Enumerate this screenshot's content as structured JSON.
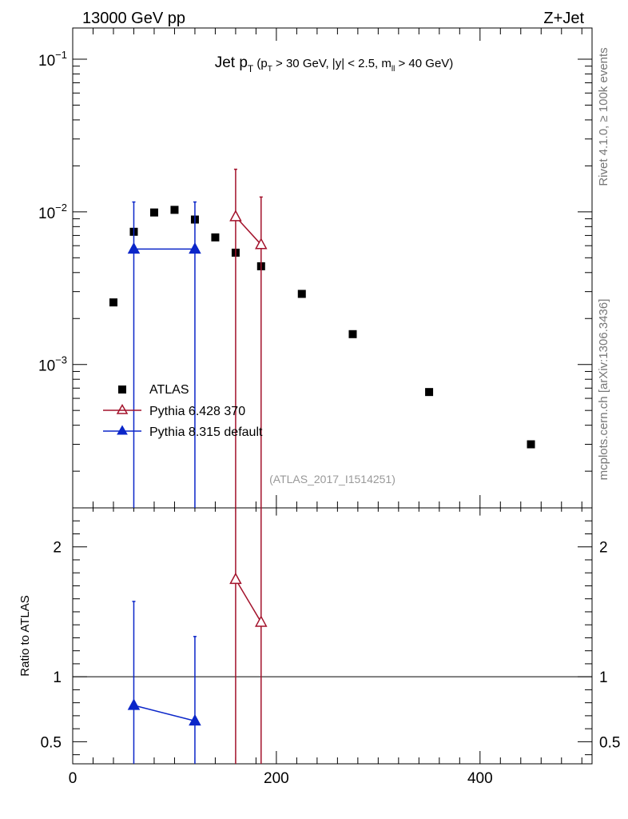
{
  "header": {
    "left": "13000 GeV pp",
    "right": "Z+Jet"
  },
  "side": {
    "rivet": "Rivet 4.1.0, ≥ 100k events",
    "mcplots": "mcplots.cern.ch [arXiv:1306.3436]"
  },
  "chart_data": {
    "type": "scatter",
    "title": {
      "main": "Jet p",
      "main_sub": "T",
      "cut_open": " (p",
      "cut_sub1": "T",
      "cut_mid": " > 30 GeV, |y| < 2.5, m",
      "cut_sub2": "ll",
      "cut_close": " > 40 GeV)"
    },
    "analysis_id": "(ATLAS_2017_I1514251)",
    "xlim": [
      0,
      510
    ],
    "x_ticks": [
      0,
      200,
      400
    ],
    "x_tick_labels": [
      "0",
      "200",
      "400"
    ],
    "main_panel": {
      "yscale": "log",
      "ylim": [
        0.000115,
        0.16
      ],
      "y_ticks": [
        0.001,
        0.01,
        0.1
      ],
      "y_tick_labels": [
        {
          "base": "10",
          "exp": "−3"
        },
        {
          "base": "10",
          "exp": "−2"
        },
        {
          "base": "10",
          "exp": "−1"
        }
      ]
    },
    "ratio_panel": {
      "ylabel": "Ratio to ATLAS",
      "ylim": [
        0.33,
        2.3
      ],
      "y_ticks": [
        0.5,
        1,
        2
      ],
      "y_tick_labels": [
        "0.5",
        "1",
        "2"
      ],
      "reference_line": 1
    },
    "series": [
      {
        "name": "ATLAS",
        "color": "#000000",
        "marker": "square",
        "x": [
          40,
          60,
          80,
          100,
          120,
          140,
          160,
          185,
          225,
          275,
          350,
          450
        ],
        "y": [
          0.00255,
          0.0074,
          0.0099,
          0.0103,
          0.0089,
          0.0068,
          0.0054,
          0.0044,
          0.0029,
          0.00158,
          0.00066,
          0.0003
        ]
      },
      {
        "name": "Pythia 6.428 370",
        "color": "#a3122b",
        "marker": "open-triangle",
        "x": [
          160,
          185
        ],
        "y": [
          0.0093,
          0.0061
        ],
        "y_err_up": [
          0.019,
          0.0125
        ],
        "y_err_down": [
          1e-05,
          1e-05
        ],
        "ratio": [
          1.75,
          1.42
        ],
        "ratio_err_up": [
          3.0,
          3.0
        ],
        "ratio_err_down": [
          0.01,
          0.01
        ]
      },
      {
        "name": "Pythia 8.315 default",
        "color": "#0b26c9",
        "marker": "filled-triangle",
        "x": [
          60,
          120
        ],
        "y": [
          0.0057,
          0.0057
        ],
        "y_err_up": [
          0.0116,
          0.0116
        ],
        "y_err_down": [
          1e-05,
          1e-05
        ],
        "ratio": [
          0.78,
          0.66
        ],
        "ratio_err_up": [
          1.58,
          1.31
        ],
        "ratio_err_down": [
          0.01,
          0.01
        ]
      }
    ]
  }
}
